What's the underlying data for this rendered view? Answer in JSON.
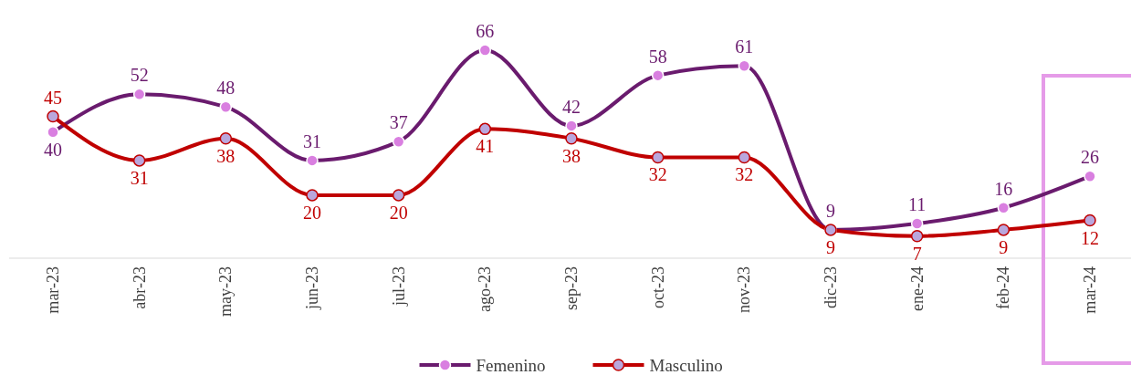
{
  "chart_data": {
    "type": "line",
    "categories": [
      "mar-23",
      "abr-23",
      "may-23",
      "jun-23",
      "jul-23",
      "ago-23",
      "sep-23",
      "oct-23",
      "nov-23",
      "dic-23",
      "ene-24",
      "feb-24",
      "mar-24"
    ],
    "series": [
      {
        "name": "Femenino",
        "color": "#6a1b6e",
        "values": [
          40,
          52,
          48,
          31,
          37,
          66,
          42,
          58,
          61,
          9,
          11,
          16,
          26
        ]
      },
      {
        "name": "Masculino",
        "color": "#c00000",
        "values": [
          45,
          31,
          38,
          20,
          20,
          41,
          38,
          32,
          32,
          9,
          7,
          9,
          12
        ]
      }
    ],
    "data_labels": true,
    "marker": "circle",
    "legend": "bottom"
  }
}
